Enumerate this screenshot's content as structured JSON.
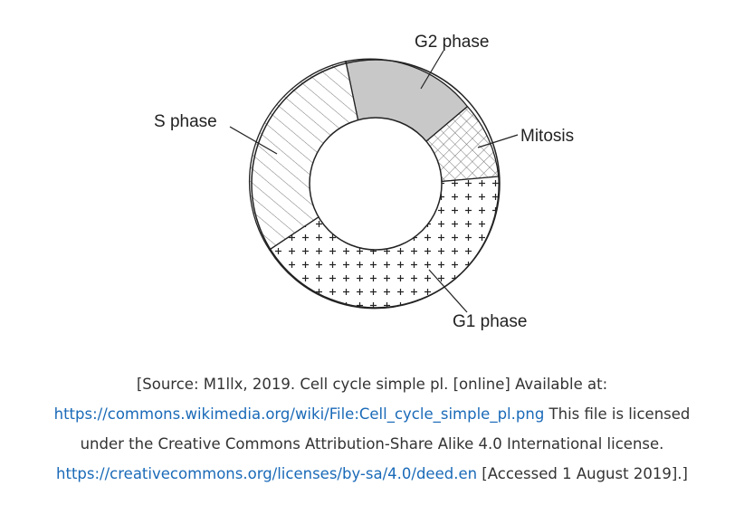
{
  "diagram": {
    "segments": [
      {
        "name": "G2 phase",
        "fill": "solid-gray",
        "color": "#c8c8c8"
      },
      {
        "name": "Mitosis",
        "fill": "crosshatch"
      },
      {
        "name": "G1 phase",
        "fill": "plus-pattern"
      },
      {
        "name": "S phase",
        "fill": "diagonal-lines"
      }
    ],
    "labels": {
      "g2": "G2 phase",
      "s": "S phase",
      "mitosis": "Mitosis",
      "g1": "G1 phase"
    }
  },
  "caption": {
    "line1": "[Source: M1llx, 2019. Cell cycle simple pl. [online] Available at:",
    "link1": "https://commons.wikimedia.org/wiki/File:Cell_cycle_simple_pl.png",
    "line2_rest": " This file is licensed",
    "line3": "under the Creative Commons Attribution-Share Alike 4.0 International license.",
    "link2": "https://creativecommons.org/licenses/by-sa/4.0/deed.en",
    "line4_rest": " [Accessed 1 August 2019].]",
    "link_color": "#1a6ab8"
  }
}
